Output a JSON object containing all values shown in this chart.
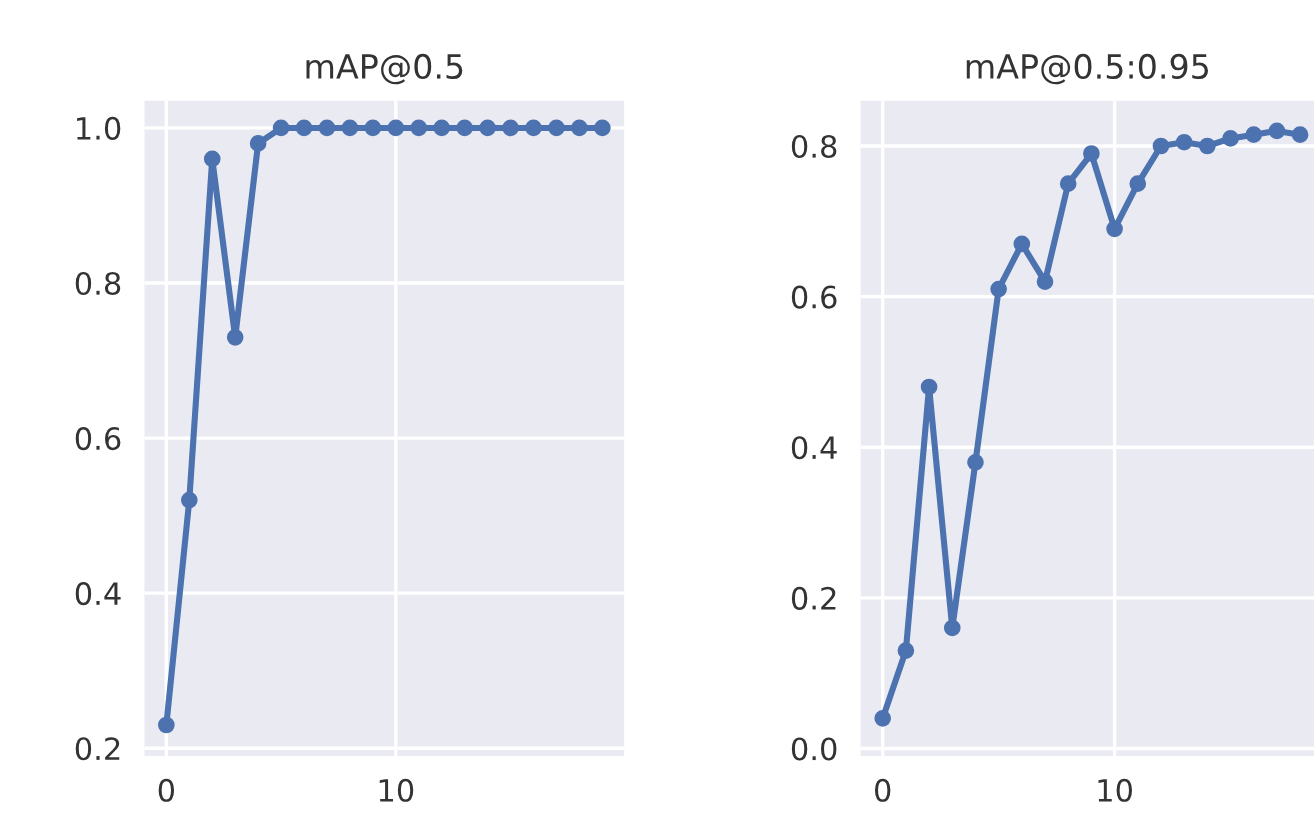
{
  "chart_data": [
    {
      "type": "line",
      "title": "mAP@0.5",
      "x": [
        0,
        1,
        2,
        3,
        4,
        5,
        6,
        7,
        8,
        9,
        10,
        11,
        12,
        13,
        14,
        15,
        16,
        17,
        18,
        19
      ],
      "series": [
        {
          "color": "#4c72b0",
          "values": [
            0.23,
            0.52,
            0.96,
            0.73,
            0.98,
            1.0,
            1.0,
            1.0,
            1.0,
            1.0,
            1.0,
            1.0,
            1.0,
            1.0,
            1.0,
            1.0,
            1.0,
            1.0,
            1.0,
            1.0
          ]
        }
      ],
      "xlim": [
        -0.95,
        19.95
      ],
      "ylim": [
        0.19,
        1.035
      ],
      "xticks": [
        0,
        10
      ],
      "yticks": [
        0.2,
        0.4,
        0.6,
        0.8,
        {
          "value": 1,
          "label": "1.0"
        }
      ],
      "grid": true,
      "marker": "circle",
      "line_style": "solid"
    },
    {
      "type": "line",
      "title": "mAP@0.5:0.95",
      "x": [
        0,
        1,
        2,
        3,
        4,
        5,
        6,
        7,
        8,
        9,
        10,
        11,
        12,
        13,
        14,
        15,
        16,
        17,
        18
      ],
      "series": [
        {
          "color": "#4c72b0",
          "values": [
            0.04,
            0.13,
            0.48,
            0.16,
            0.38,
            0.61,
            0.67,
            0.62,
            0.75,
            0.79,
            0.69,
            0.75,
            0.8,
            0.805,
            0.8,
            0.81,
            0.815,
            0.82,
            0.815
          ]
        }
      ],
      "xlim": [
        -0.95,
        18.6
      ],
      "ylim": [
        -0.01,
        0.86
      ],
      "xticks": [
        0,
        10
      ],
      "yticks": [
        {
          "value": 0,
          "label": "0.0"
        },
        0.2,
        0.4,
        0.6,
        0.8
      ],
      "grid": true,
      "marker": "circle",
      "line_style": "solid"
    }
  ]
}
